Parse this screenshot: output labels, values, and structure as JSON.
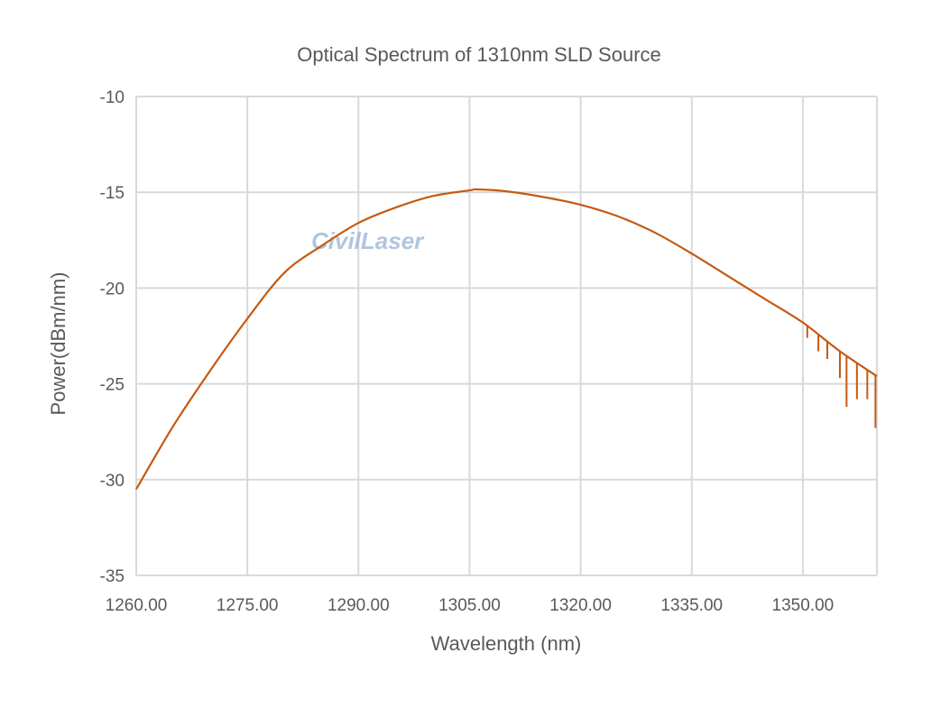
{
  "chart_data": {
    "type": "line",
    "title": "Optical Spectrum of 1310nm SLD Source",
    "xlabel": "Wavelength (nm)",
    "ylabel": "Power(dBm/nm)",
    "xlim": [
      1260,
      1360
    ],
    "ylim": [
      -35,
      -10
    ],
    "grid": true,
    "legend": "none",
    "color": "#c55a11",
    "x_ticks": [
      1260,
      1275,
      1290,
      1305,
      1320,
      1335,
      1350
    ],
    "x_tick_labels": [
      "1260.00",
      "1275.00",
      "1290.00",
      "1305.00",
      "1320.00",
      "1335.00",
      "1350.00"
    ],
    "y_ticks": [
      -10,
      -15,
      -20,
      -25,
      -30,
      -35
    ],
    "y_tick_labels": [
      "-10",
      "-15",
      "-20",
      "-25",
      "-30",
      "-35"
    ],
    "series": [
      {
        "x": [
          1260,
          1265,
          1270,
          1275,
          1280,
          1285,
          1290,
          1295,
          1300,
          1305,
          1306,
          1310,
          1315,
          1320,
          1325,
          1330,
          1335,
          1340,
          1345,
          1350,
          1355,
          1360
        ],
        "y": [
          -30.5,
          -27.2,
          -24.3,
          -21.6,
          -19.2,
          -17.8,
          -16.6,
          -15.8,
          -15.2,
          -14.9,
          -14.85,
          -14.95,
          -15.25,
          -15.65,
          -16.25,
          -17.1,
          -18.2,
          -19.4,
          -20.6,
          -21.8,
          -23.3,
          -24.6
        ]
      }
    ],
    "dips": [
      {
        "x": 1350.6,
        "y": -22.6
      },
      {
        "x": 1352.1,
        "y": -23.3
      },
      {
        "x": 1353.3,
        "y": -23.7
      },
      {
        "x": 1355.0,
        "y": -24.7
      },
      {
        "x": 1355.9,
        "y": -26.2
      },
      {
        "x": 1357.3,
        "y": -25.8
      },
      {
        "x": 1358.7,
        "y": -25.8
      },
      {
        "x": 1359.8,
        "y": -27.3
      }
    ]
  },
  "watermark": "CivilLaser"
}
